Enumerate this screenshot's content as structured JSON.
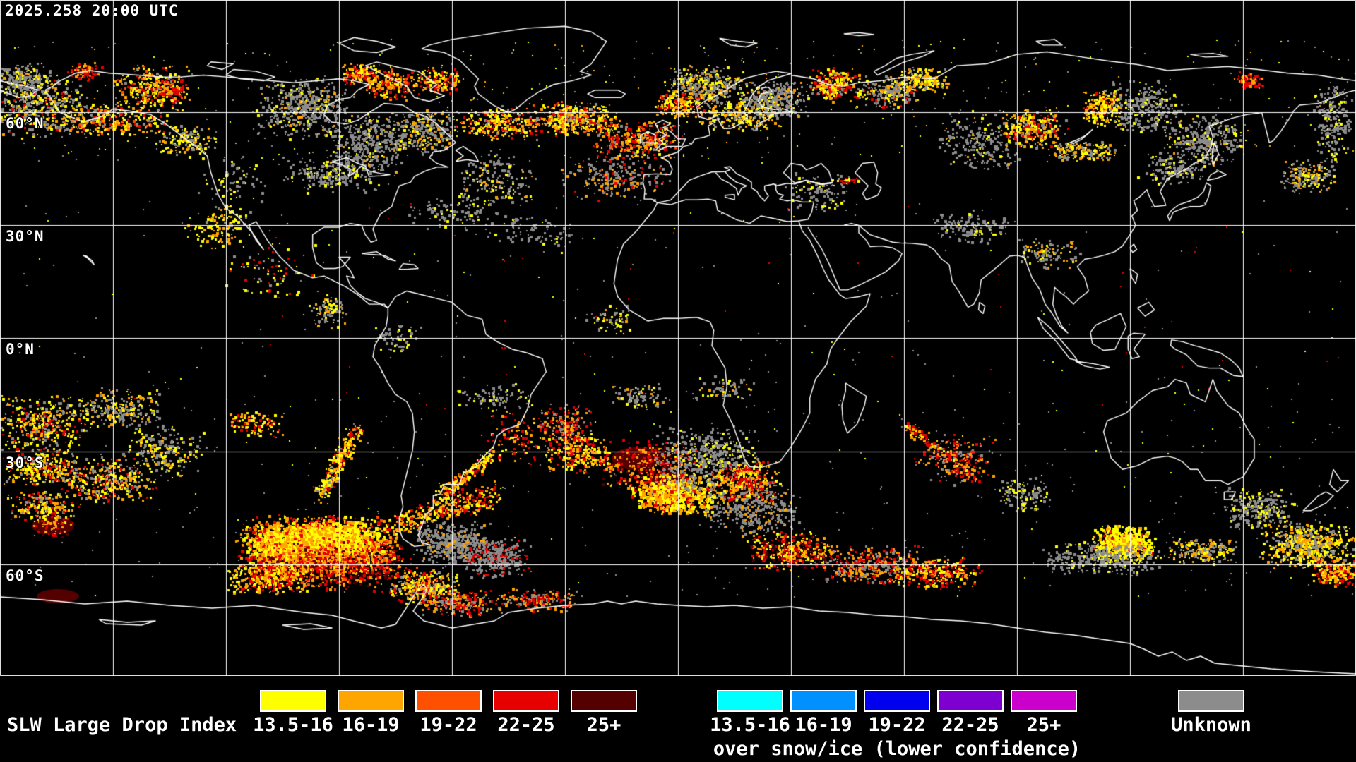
{
  "header": {
    "timestamp": "2025.258 20:00 UTC"
  },
  "map": {
    "background": "#000000",
    "grid_color": "#ffffff",
    "coastline_color": "#ffffff",
    "lat_labels": [
      {
        "text": "60°N"
      },
      {
        "text": "30°N"
      },
      {
        "text": "0°N"
      },
      {
        "text": "30°S"
      },
      {
        "text": "60°S"
      }
    ]
  },
  "palette": {
    "yellow": "#ffff00",
    "orange": "#ffa500",
    "dark_orange": "#ff5000",
    "red": "#e60000",
    "dark_red": "#550000",
    "cyan": "#00ffff",
    "azure": "#0090ff",
    "blue": "#0000ee",
    "purple": "#7d00d0",
    "magenta": "#cc00cc",
    "unknown_gray": "#8c8c8c"
  },
  "legend": {
    "slw": {
      "title": "SLW Large Drop Index",
      "items": [
        {
          "label": "13.5-16",
          "color": "#ffff00"
        },
        {
          "label": "16-19",
          "color": "#ffa500"
        },
        {
          "label": "19-22",
          "color": "#ff5000"
        },
        {
          "label": "22-25",
          "color": "#e60000"
        },
        {
          "label": "25+",
          "color": "#550000"
        }
      ]
    },
    "snow": {
      "subtitle": "over snow/ice (lower confidence)",
      "items": [
        {
          "label": "13.5-16",
          "color": "#00ffff"
        },
        {
          "label": "16-19",
          "color": "#0090ff"
        },
        {
          "label": "19-22",
          "color": "#0000ee"
        },
        {
          "label": "22-25",
          "color": "#7d00d0"
        },
        {
          "label": "25+",
          "color": "#cc00cc"
        }
      ]
    },
    "unknown": {
      "label": "Unknown",
      "color": "#8c8c8c"
    }
  }
}
